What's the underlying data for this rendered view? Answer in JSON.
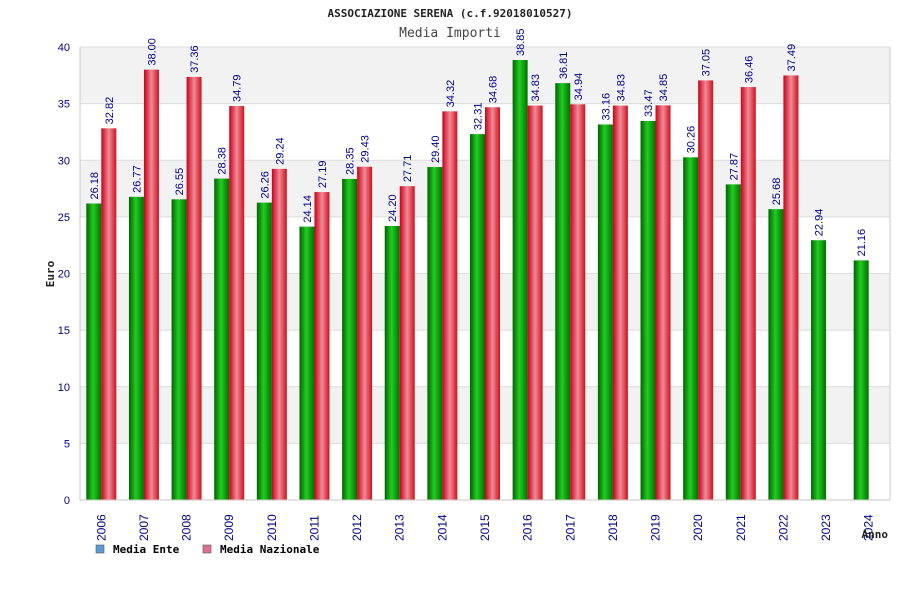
{
  "chart_data": {
    "type": "bar",
    "title": "ASSOCIAZIONE SERENA (c.f.92018010527)",
    "subtitle": "Media Importi",
    "xlabel": "Anno",
    "ylabel": "Euro",
    "ylim": [
      0,
      40
    ],
    "yticks": [
      0,
      5,
      10,
      15,
      20,
      25,
      30,
      35,
      40
    ],
    "grid": true,
    "legend_position": "bottom-left",
    "categories": [
      "2006",
      "2007",
      "2008",
      "2009",
      "2010",
      "2011",
      "2012",
      "2013",
      "2014",
      "2015",
      "2016",
      "2017",
      "2018",
      "2019",
      "2020",
      "2021",
      "2022",
      "2023",
      "2024"
    ],
    "series": [
      {
        "name": "Media Ente",
        "color": "#00a000",
        "legend_color": "#5b9bd5",
        "values": [
          26.18,
          26.77,
          26.55,
          28.38,
          26.26,
          24.14,
          28.35,
          24.2,
          29.4,
          32.31,
          38.85,
          36.81,
          33.16,
          33.47,
          30.26,
          27.87,
          25.68,
          22.94,
          21.16
        ],
        "labels": [
          "26.18",
          "26.77",
          "26.55",
          "28.38",
          "26.26",
          "24.14",
          "28.35",
          "24.20",
          "29.40",
          "32.31",
          "38.85",
          "36.81",
          "33.16",
          "33.47",
          "30.26",
          "27.87",
          "25.68",
          "22.94",
          "21.16"
        ]
      },
      {
        "name": "Media Nazionale",
        "color": "#e02030",
        "legend_color": "#e07090",
        "values": [
          32.82,
          38.0,
          37.36,
          34.79,
          29.24,
          27.19,
          29.43,
          27.71,
          34.32,
          34.68,
          34.83,
          34.94,
          34.83,
          34.85,
          37.05,
          36.46,
          37.49,
          null,
          null
        ],
        "labels": [
          "32.82",
          "38.00",
          "37.36",
          "34.79",
          "29.24",
          "27.19",
          "29.43",
          "27.71",
          "34.32",
          "34.68",
          "34.83",
          "34.94",
          "34.83",
          "34.85",
          "37.05",
          "36.46",
          "37.49",
          null,
          null
        ]
      }
    ]
  }
}
